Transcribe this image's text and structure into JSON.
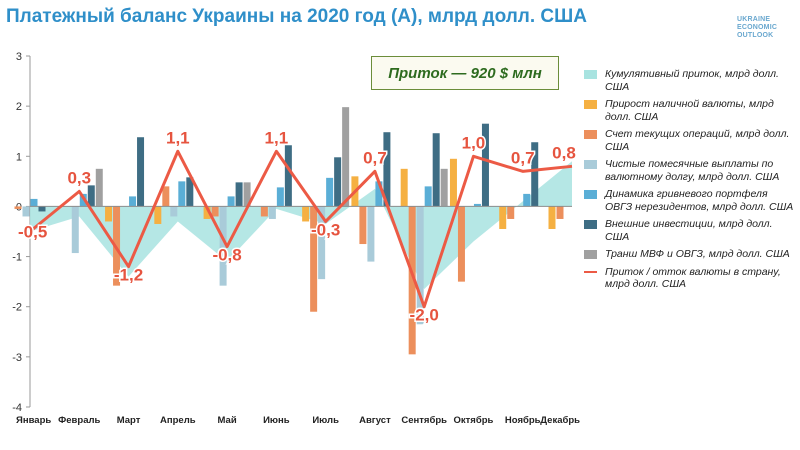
{
  "header": {
    "title": "Платежный баланс Украины на 2020 год (А), млрд долл. США",
    "brand_lines": [
      "UKRAINE",
      "ECONOMIC",
      "OUTLOOK"
    ],
    "callout": "Приток — 920 $ млн"
  },
  "chart_data": {
    "type": "bar",
    "title": "Платежный баланс Украины на 2020 год (А), млрд долл. США",
    "ylim": [
      -4,
      3
    ],
    "yticks": [
      -4,
      -3,
      -2,
      -1,
      0,
      1,
      2,
      3
    ],
    "categories": [
      "Январь",
      "Февраль",
      "Март",
      "Апрель",
      "Май",
      "Июнь",
      "Июль",
      "Август",
      "Сентябрь",
      "Октябрь",
      "Ноябрь",
      "Декабрь"
    ],
    "area": {
      "name": "Кумулятивный приток, млрд долл. США",
      "color": "#a8e3e0",
      "values": [
        -0.5,
        -0.2,
        -1.4,
        -0.3,
        -1.1,
        -0.05,
        -0.35,
        0.35,
        -1.65,
        -0.7,
        0.1,
        0.9
      ]
    },
    "series": [
      {
        "name": "Прирост наличной валюты, млрд долл. США",
        "color": "#f5b042",
        "values": [
          0,
          0,
          -0.3,
          -0.35,
          -0.25,
          0,
          -0.3,
          0.6,
          0.75,
          0.95,
          -0.45,
          -0.45
        ]
      },
      {
        "name": "Счет текущих операций, млрд долл. США",
        "color": "#ec8f5c",
        "values": [
          -0.05,
          0,
          -1.58,
          0.4,
          -0.2,
          -0.2,
          -2.1,
          -0.75,
          -2.95,
          -1.5,
          -0.25,
          -0.25
        ]
      },
      {
        "name": "Чистые помесячные выплаты по валютному долгу, млрд долл. США",
        "color": "#a9cbd9",
        "values": [
          -0.2,
          -0.93,
          0,
          -0.2,
          -1.58,
          -0.25,
          -1.45,
          -1.1,
          -2.35,
          0,
          0,
          0
        ]
      },
      {
        "name": "Динамика гривневого портфеля ОВГЗ нерезидентов, млрд долл. США",
        "color": "#5aaed6",
        "values": [
          0.15,
          0.25,
          0.2,
          0.5,
          0.2,
          0.38,
          0.57,
          0.5,
          0.4,
          0.05,
          0.25,
          0
        ]
      },
      {
        "name": "Внешние инвестиции, млрд долл. США",
        "color": "#3e6d84",
        "values": [
          -0.1,
          0.42,
          1.38,
          0.58,
          0.48,
          1.22,
          0.98,
          1.48,
          1.46,
          1.65,
          1.28,
          0
        ]
      },
      {
        "name": "Транш МВФ и ОВГЗ, млрд долл. США",
        "color": "#a0a0a0",
        "values": [
          0,
          0.75,
          0,
          0,
          0.48,
          0,
          1.98,
          0,
          0.75,
          0,
          0,
          0
        ]
      }
    ],
    "line": {
      "name": "Приток / отток валюты в страну, млрд долл. США",
      "color": "#ec5a45",
      "values": [
        -0.5,
        0.3,
        -1.2,
        1.1,
        -0.8,
        1.1,
        -0.3,
        0.7,
        -2.0,
        1.0,
        0.7,
        0.8
      ],
      "labels": [
        "-0,5",
        "0,3",
        "-1,2",
        "1,1",
        "-0,8",
        "1,1",
        "-0,3",
        "0,7",
        "-2,0",
        "1,0",
        "0,7",
        "0,8"
      ]
    }
  }
}
